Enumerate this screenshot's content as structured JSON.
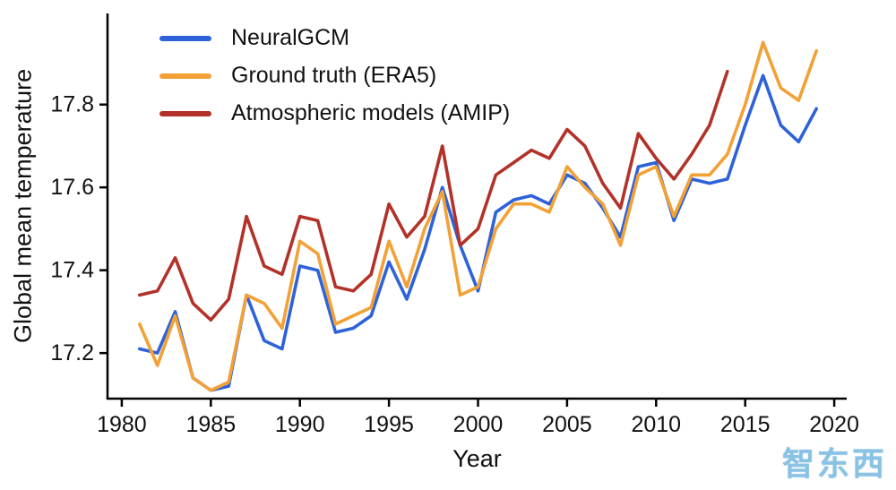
{
  "watermark": {
    "text": "智东西"
  },
  "chart_data": {
    "type": "line",
    "title": "",
    "xlabel": "Year",
    "ylabel": "Global mean temperature",
    "grid": false,
    "legend_position": "top-left",
    "xlim": [
      1979.2,
      2020.7
    ],
    "ylim": [
      17.09,
      18.02
    ],
    "x_ticks": {
      "values": [
        1980,
        1985,
        1990,
        1995,
        2000,
        2005,
        2010,
        2015,
        2020
      ],
      "labels": [
        "1980",
        "1985",
        "1990",
        "1995",
        "2000",
        "2005",
        "2010",
        "2015",
        "2020"
      ]
    },
    "y_ticks": {
      "values": [
        17.2,
        17.4,
        17.6,
        17.8
      ],
      "labels": [
        "17.2",
        "17.4",
        "17.6",
        "17.8"
      ]
    },
    "series": [
      {
        "name": "NeuralGCM",
        "color": "#2e62d9",
        "x": [
          1981,
          1982,
          1983,
          1984,
          1985,
          1986,
          1987,
          1988,
          1989,
          1990,
          1991,
          1992,
          1993,
          1994,
          1995,
          1996,
          1997,
          1998,
          1999,
          2000,
          2001,
          2002,
          2003,
          2004,
          2005,
          2006,
          2007,
          2008,
          2009,
          2010,
          2011,
          2012,
          2013,
          2014,
          2015,
          2016,
          2017,
          2018,
          2019
        ],
        "values": [
          17.21,
          17.2,
          17.3,
          17.14,
          17.11,
          17.12,
          17.34,
          17.23,
          17.21,
          17.41,
          17.4,
          17.25,
          17.26,
          17.29,
          17.42,
          17.33,
          17.45,
          17.6,
          17.46,
          17.35,
          17.54,
          17.57,
          17.58,
          17.56,
          17.63,
          17.61,
          17.55,
          17.48,
          17.65,
          17.66,
          17.52,
          17.62,
          17.61,
          17.62,
          17.75,
          17.87,
          17.75,
          17.71,
          17.79
        ]
      },
      {
        "name": "Ground truth (ERA5)",
        "color": "#f2a136",
        "x": [
          1981,
          1982,
          1983,
          1984,
          1985,
          1986,
          1987,
          1988,
          1989,
          1990,
          1991,
          1992,
          1993,
          1994,
          1995,
          1996,
          1997,
          1998,
          1999,
          2000,
          2001,
          2002,
          2003,
          2004,
          2005,
          2006,
          2007,
          2008,
          2009,
          2010,
          2011,
          2012,
          2013,
          2014,
          2015,
          2016,
          2017,
          2018,
          2019
        ],
        "values": [
          17.27,
          17.17,
          17.29,
          17.14,
          17.11,
          17.13,
          17.34,
          17.32,
          17.26,
          17.47,
          17.44,
          17.27,
          17.29,
          17.31,
          17.47,
          17.36,
          17.5,
          17.59,
          17.34,
          17.36,
          17.5,
          17.56,
          17.56,
          17.54,
          17.65,
          17.6,
          17.56,
          17.46,
          17.63,
          17.65,
          17.53,
          17.63,
          17.63,
          17.68,
          17.8,
          17.95,
          17.84,
          17.81,
          17.93
        ]
      },
      {
        "name": "Atmospheric models (AMIP)",
        "color": "#b23229",
        "x": [
          1981,
          1982,
          1983,
          1984,
          1985,
          1986,
          1987,
          1988,
          1989,
          1990,
          1991,
          1992,
          1993,
          1994,
          1995,
          1996,
          1997,
          1998,
          1999,
          2000,
          2001,
          2002,
          2003,
          2004,
          2005,
          2006,
          2007,
          2008,
          2009,
          2010,
          2011,
          2012,
          2013,
          2014
        ],
        "values": [
          17.34,
          17.35,
          17.43,
          17.32,
          17.28,
          17.33,
          17.53,
          17.41,
          17.39,
          17.53,
          17.52,
          17.36,
          17.35,
          17.39,
          17.56,
          17.48,
          17.53,
          17.7,
          17.46,
          17.5,
          17.63,
          17.66,
          17.69,
          17.67,
          17.74,
          17.7,
          17.61,
          17.55,
          17.73,
          17.67,
          17.62,
          17.68,
          17.75,
          17.88
        ]
      }
    ]
  }
}
